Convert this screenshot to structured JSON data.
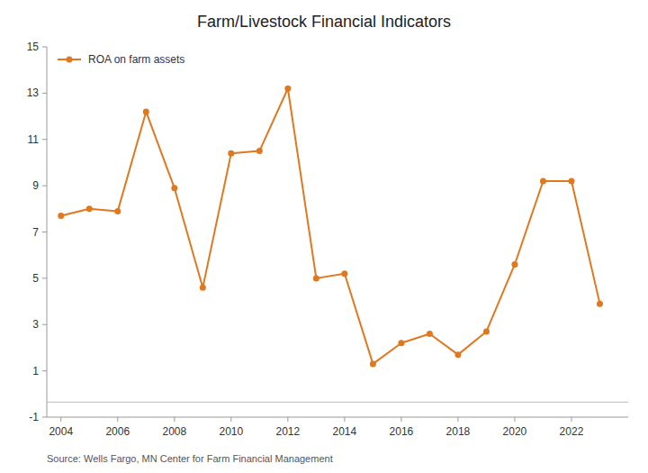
{
  "chart_data": {
    "type": "line",
    "title": "Farm/Livestock Financial Indicators",
    "x": [
      2004,
      2005,
      2006,
      2007,
      2008,
      2009,
      2010,
      2011,
      2012,
      2013,
      2014,
      2015,
      2016,
      2017,
      2018,
      2019,
      2020,
      2021,
      2022,
      2023
    ],
    "series": [
      {
        "name": "ROA on farm assets",
        "color": "#E07820",
        "marker": "circle",
        "values": [
          7.7,
          8.0,
          7.9,
          12.2,
          8.9,
          4.6,
          10.4,
          10.5,
          13.2,
          5.0,
          5.2,
          1.3,
          2.2,
          2.6,
          1.7,
          2.7,
          5.6,
          9.2,
          9.2,
          3.9
        ]
      }
    ],
    "xlim": [
      2003.5,
      2024.0
    ],
    "xticks": [
      2004,
      2006,
      2008,
      2010,
      2012,
      2014,
      2016,
      2018,
      2020,
      2022
    ],
    "ylim": [
      -1,
      15
    ],
    "yticks": [
      -1,
      1,
      3,
      5,
      7,
      9,
      11,
      13,
      15
    ],
    "reference_line": {
      "value": -0.35,
      "color": "#bbbbbb"
    },
    "source": "Source: Wells Fargo, MN Center for Farm Financial Management",
    "grid": false,
    "legend": "upper left"
  }
}
